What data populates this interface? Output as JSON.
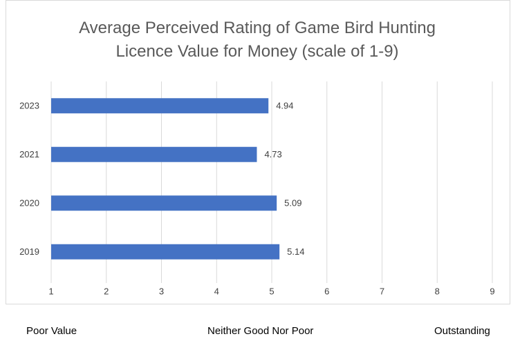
{
  "chart_data": {
    "type": "hbar",
    "title": "Average Perceived Rating of Game Bird Hunting Licence Value for Money (scale of 1-9)",
    "categories": [
      "2023",
      "2021",
      "2020",
      "2019"
    ],
    "values": [
      4.94,
      4.73,
      5.09,
      5.14
    ],
    "color": "#4472c4",
    "xlim": [
      1,
      9
    ],
    "xticks": [
      1,
      2,
      3,
      4,
      5,
      6,
      7,
      8,
      9
    ],
    "grid": true,
    "annotations": [
      "Poor Value",
      "Neither Good Nor Poor",
      "Outstanding"
    ]
  }
}
